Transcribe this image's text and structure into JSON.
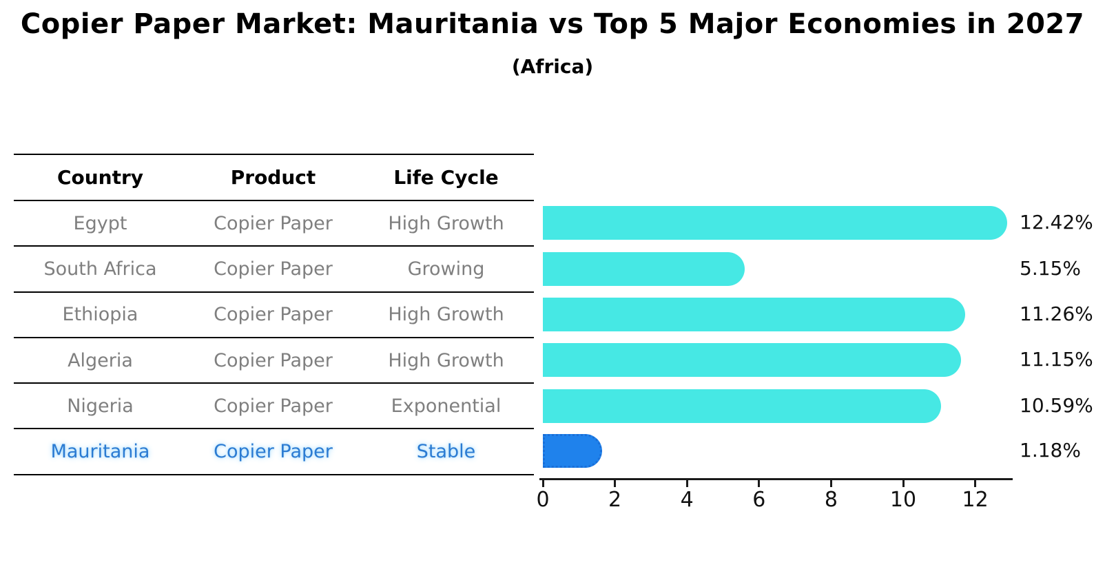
{
  "title": "Copier Paper Market: Mauritania vs Top 5 Major Economies in 2027",
  "subtitle": "(Africa)",
  "table": {
    "headers": [
      "Country",
      "Product",
      "Life Cycle"
    ],
    "rows": [
      {
        "country": "Egypt",
        "product": "Copier Paper",
        "life_cycle": "High Growth",
        "highlight": false
      },
      {
        "country": "South Africa",
        "product": "Copier Paper",
        "life_cycle": "Growing",
        "highlight": false
      },
      {
        "country": "Ethiopia",
        "product": "Copier Paper",
        "life_cycle": "High Growth",
        "highlight": false
      },
      {
        "country": "Algeria",
        "product": "Copier Paper",
        "life_cycle": "High Growth",
        "highlight": false
      },
      {
        "country": "Nigeria",
        "product": "Copier Paper",
        "life_cycle": "Exponential",
        "highlight": false
      },
      {
        "country": "Mauritania",
        "product": "Copier Paper",
        "life_cycle": "Stable",
        "highlight": true
      }
    ]
  },
  "chart_data": {
    "type": "bar",
    "orientation": "horizontal",
    "title": "Copier Paper Market: Mauritania vs Top 5 Major Economies in 2027 (Africa)",
    "categories": [
      "Egypt",
      "South Africa",
      "Ethiopia",
      "Algeria",
      "Nigeria",
      "Mauritania"
    ],
    "values": [
      12.42,
      5.15,
      11.26,
      11.15,
      10.59,
      1.18
    ],
    "value_labels": [
      "12.42%",
      "5.15%",
      "11.26%",
      "11.15%",
      "10.59%",
      "1.18%"
    ],
    "xlabel": "",
    "ylabel": "",
    "xlim": [
      0,
      13.1
    ],
    "x_ticks": [
      0,
      2,
      4,
      6,
      8,
      10,
      12
    ],
    "grid": false,
    "legend": false,
    "highlight_index": 5
  },
  "colors": {
    "bar": "#46E8E4",
    "highlight_bar": "#1F82EC",
    "highlight_bar_edge": "#1A6FD8",
    "highlight_text": "#2B7BD2",
    "row_text": "#7F7F7F",
    "axis": "#1A1A1A",
    "label_text": "#111111"
  }
}
